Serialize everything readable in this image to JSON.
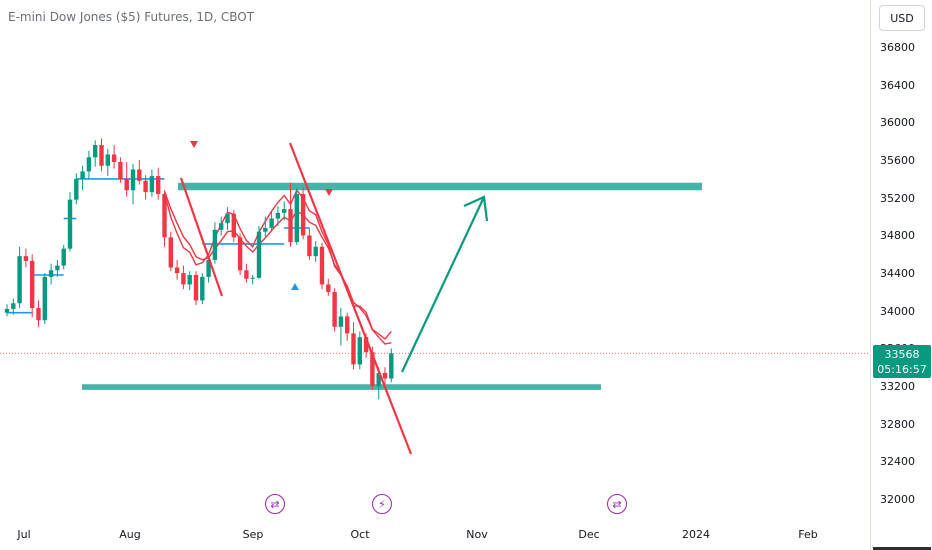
{
  "header": {
    "title": "E-mini Dow Jones ($5) Futures, 1D, CBOT",
    "currency": "USD"
  },
  "price_label": {
    "price": "33568",
    "countdown": "05:16:57"
  },
  "colors": {
    "up": "#089981",
    "down": "#f23645",
    "supertrend": "#2196f3",
    "zone": "#26a69a",
    "trendline": "#f23645",
    "arrow": "#089981",
    "events": "#9c27b0"
  },
  "event_icons": [
    {
      "icon": "split-arrows-icon",
      "glyph": "⇄"
    },
    {
      "icon": "lightning-icon",
      "glyph": "⚡"
    },
    {
      "icon": "split-arrows-icon",
      "glyph": "⇄"
    }
  ],
  "chart_data": {
    "type": "candlestick",
    "y_axis": {
      "ticks": [
        32000,
        32400,
        32800,
        33200,
        33600,
        34000,
        34400,
        34800,
        35200,
        35600,
        36000,
        36400,
        36800
      ],
      "range": [
        31800,
        37000
      ]
    },
    "x_axis": {
      "ticks": [
        "Jul",
        "Aug",
        "Sep",
        "Oct",
        "Nov",
        "Dec",
        "2024",
        "Feb"
      ]
    },
    "last_price": 33568,
    "candles": [
      {
        "o": 34000,
        "h": 34090,
        "l": 33960,
        "c": 34040
      },
      {
        "o": 34040,
        "h": 34150,
        "l": 33980,
        "c": 34100
      },
      {
        "o": 34100,
        "h": 34700,
        "l": 34050,
        "c": 34600
      },
      {
        "o": 34600,
        "h": 34680,
        "l": 34480,
        "c": 34550
      },
      {
        "o": 34550,
        "h": 34620,
        "l": 33950,
        "c": 34050
      },
      {
        "o": 34050,
        "h": 34130,
        "l": 33850,
        "c": 33920
      },
      {
        "o": 33920,
        "h": 34420,
        "l": 33880,
        "c": 34380
      },
      {
        "o": 34380,
        "h": 34520,
        "l": 34300,
        "c": 34450
      },
      {
        "o": 34450,
        "h": 34560,
        "l": 34380,
        "c": 34500
      },
      {
        "o": 34500,
        "h": 34720,
        "l": 34460,
        "c": 34680
      },
      {
        "o": 34680,
        "h": 35280,
        "l": 34650,
        "c": 35200
      },
      {
        "o": 35200,
        "h": 35480,
        "l": 35150,
        "c": 35420
      },
      {
        "o": 35420,
        "h": 35560,
        "l": 35300,
        "c": 35500
      },
      {
        "o": 35500,
        "h": 35720,
        "l": 35420,
        "c": 35650
      },
      {
        "o": 35650,
        "h": 35830,
        "l": 35550,
        "c": 35780
      },
      {
        "o": 35780,
        "h": 35850,
        "l": 35500,
        "c": 35560
      },
      {
        "o": 35560,
        "h": 35740,
        "l": 35450,
        "c": 35680
      },
      {
        "o": 35680,
        "h": 35780,
        "l": 35530,
        "c": 35600
      },
      {
        "o": 35600,
        "h": 35650,
        "l": 35380,
        "c": 35420
      },
      {
        "o": 35420,
        "h": 35600,
        "l": 35230,
        "c": 35300
      },
      {
        "o": 35300,
        "h": 35580,
        "l": 35150,
        "c": 35520
      },
      {
        "o": 35520,
        "h": 35620,
        "l": 35360,
        "c": 35400
      },
      {
        "o": 35400,
        "h": 35460,
        "l": 35200,
        "c": 35280
      },
      {
        "o": 35280,
        "h": 35520,
        "l": 35230,
        "c": 35450
      },
      {
        "o": 35450,
        "h": 35540,
        "l": 35200,
        "c": 35260
      },
      {
        "o": 35260,
        "h": 35300,
        "l": 34700,
        "c": 34800
      },
      {
        "o": 34800,
        "h": 34860,
        "l": 34440,
        "c": 34480
      },
      {
        "o": 34480,
        "h": 34560,
        "l": 34350,
        "c": 34420
      },
      {
        "o": 34420,
        "h": 34500,
        "l": 34250,
        "c": 34300
      },
      {
        "o": 34300,
        "h": 34440,
        "l": 34240,
        "c": 34400
      },
      {
        "o": 34400,
        "h": 34440,
        "l": 34080,
        "c": 34130
      },
      {
        "o": 34130,
        "h": 34420,
        "l": 34090,
        "c": 34380
      },
      {
        "o": 34380,
        "h": 34610,
        "l": 34320,
        "c": 34560
      },
      {
        "o": 34560,
        "h": 34960,
        "l": 34520,
        "c": 34880
      },
      {
        "o": 34880,
        "h": 35020,
        "l": 34820,
        "c": 34950
      },
      {
        "o": 34950,
        "h": 35120,
        "l": 34880,
        "c": 35050
      },
      {
        "o": 35050,
        "h": 35090,
        "l": 34750,
        "c": 34800
      },
      {
        "o": 34800,
        "h": 34840,
        "l": 34400,
        "c": 34450
      },
      {
        "o": 34450,
        "h": 34520,
        "l": 34320,
        "c": 34360
      },
      {
        "o": 34360,
        "h": 34400,
        "l": 34300,
        "c": 34370
      },
      {
        "o": 34370,
        "h": 34920,
        "l": 34360,
        "c": 34860
      },
      {
        "o": 34860,
        "h": 35020,
        "l": 34800,
        "c": 34900
      },
      {
        "o": 34900,
        "h": 35080,
        "l": 34860,
        "c": 35000
      },
      {
        "o": 35000,
        "h": 35130,
        "l": 34920,
        "c": 35060
      },
      {
        "o": 35060,
        "h": 35180,
        "l": 34980,
        "c": 35100
      },
      {
        "o": 35100,
        "h": 35380,
        "l": 34700,
        "c": 34750
      },
      {
        "o": 34750,
        "h": 35320,
        "l": 34720,
        "c": 35260
      },
      {
        "o": 35260,
        "h": 35330,
        "l": 34780,
        "c": 34820
      },
      {
        "o": 34820,
        "h": 34900,
        "l": 34560,
        "c": 34600
      },
      {
        "o": 34600,
        "h": 34760,
        "l": 34540,
        "c": 34700
      },
      {
        "o": 34700,
        "h": 34740,
        "l": 34250,
        "c": 34300
      },
      {
        "o": 34300,
        "h": 34360,
        "l": 34180,
        "c": 34220
      },
      {
        "o": 34220,
        "h": 34260,
        "l": 33800,
        "c": 33850
      },
      {
        "o": 33850,
        "h": 34050,
        "l": 33650,
        "c": 33960
      },
      {
        "o": 33960,
        "h": 34000,
        "l": 33700,
        "c": 33780
      },
      {
        "o": 33780,
        "h": 33900,
        "l": 33400,
        "c": 33450
      },
      {
        "o": 33450,
        "h": 33800,
        "l": 33400,
        "c": 33740
      },
      {
        "o": 33740,
        "h": 33780,
        "l": 33520,
        "c": 33580
      },
      {
        "o": 33580,
        "h": 33640,
        "l": 33180,
        "c": 33220
      },
      {
        "o": 33220,
        "h": 33420,
        "l": 33080,
        "c": 33360
      },
      {
        "o": 33360,
        "h": 33420,
        "l": 33240,
        "c": 33300
      },
      {
        "o": 33300,
        "h": 33620,
        "l": 33260,
        "c": 33568
      }
    ],
    "supertrend": [
      {
        "from": 0,
        "to": 4,
        "value": 34000
      },
      {
        "from": 4,
        "to": 9,
        "value": 34400
      },
      {
        "from": 9,
        "to": 11,
        "value": 35000
      },
      {
        "from": 11,
        "to": 25,
        "value": 35420
      },
      {
        "from": 31,
        "to": 44,
        "value": 34730
      },
      {
        "from": 44,
        "to": 48,
        "value": 34900
      }
    ],
    "ema_fast_last": 33800,
    "ema_slow_last": 33680,
    "zones": [
      {
        "from": 33180,
        "to": 33240
      },
      {
        "from": 35300,
        "to": 35380
      }
    ],
    "markers": [
      {
        "type": "sell",
        "candle": 20
      },
      {
        "type": "buy",
        "candle": 31
      },
      {
        "type": "sell",
        "candle": 35
      }
    ]
  }
}
